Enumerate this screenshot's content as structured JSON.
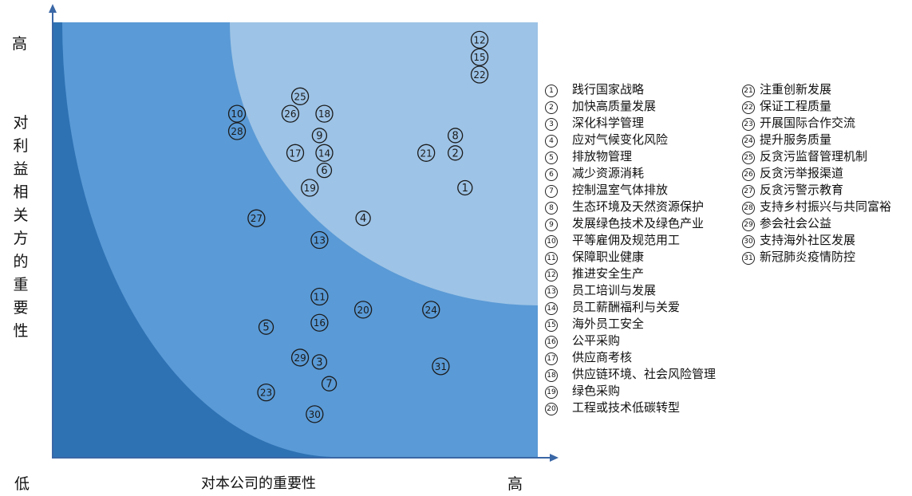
{
  "chart_data": {
    "type": "scatter",
    "title": "",
    "xlabel": "对本公司的重要性",
    "ylabel": "对利益相关方的重要性",
    "x_low_label": "低",
    "x_high_label": "高",
    "y_high_label": "高",
    "colors": {
      "outer": "#2e72b4",
      "middle": "#5a9ad6",
      "inner": "#9dc3e6",
      "axis": "#3a67a6"
    },
    "points": [
      {
        "id": "1",
        "x": 0.85,
        "y": 0.62
      },
      {
        "id": "2",
        "x": 0.83,
        "y": 0.7
      },
      {
        "id": "3",
        "x": 0.55,
        "y": 0.22
      },
      {
        "id": "4",
        "x": 0.64,
        "y": 0.55
      },
      {
        "id": "5",
        "x": 0.44,
        "y": 0.3
      },
      {
        "id": "6",
        "x": 0.56,
        "y": 0.66
      },
      {
        "id": "7",
        "x": 0.57,
        "y": 0.17
      },
      {
        "id": "8",
        "x": 0.83,
        "y": 0.74
      },
      {
        "id": "9",
        "x": 0.55,
        "y": 0.74
      },
      {
        "id": "10",
        "x": 0.38,
        "y": 0.79
      },
      {
        "id": "11",
        "x": 0.55,
        "y": 0.37
      },
      {
        "id": "12",
        "x": 0.88,
        "y": 0.96
      },
      {
        "id": "13",
        "x": 0.55,
        "y": 0.5
      },
      {
        "id": "14",
        "x": 0.56,
        "y": 0.7
      },
      {
        "id": "15",
        "x": 0.88,
        "y": 0.92
      },
      {
        "id": "16",
        "x": 0.55,
        "y": 0.31
      },
      {
        "id": "17",
        "x": 0.5,
        "y": 0.7
      },
      {
        "id": "18",
        "x": 0.56,
        "y": 0.79
      },
      {
        "id": "19",
        "x": 0.53,
        "y": 0.62
      },
      {
        "id": "20",
        "x": 0.64,
        "y": 0.34
      },
      {
        "id": "21",
        "x": 0.77,
        "y": 0.7
      },
      {
        "id": "22",
        "x": 0.88,
        "y": 0.88
      },
      {
        "id": "23",
        "x": 0.44,
        "y": 0.15
      },
      {
        "id": "24",
        "x": 0.78,
        "y": 0.34
      },
      {
        "id": "25",
        "x": 0.51,
        "y": 0.83
      },
      {
        "id": "26",
        "x": 0.49,
        "y": 0.79
      },
      {
        "id": "27",
        "x": 0.42,
        "y": 0.55
      },
      {
        "id": "28",
        "x": 0.38,
        "y": 0.75
      },
      {
        "id": "29",
        "x": 0.51,
        "y": 0.23
      },
      {
        "id": "30",
        "x": 0.54,
        "y": 0.1
      },
      {
        "id": "31",
        "x": 0.8,
        "y": 0.21
      }
    ],
    "legend": [
      {
        "num": "1",
        "label": "践行国家战略"
      },
      {
        "num": "2",
        "label": "加快高质量发展"
      },
      {
        "num": "3",
        "label": "深化科学管理"
      },
      {
        "num": "4",
        "label": "应对气候变化风险"
      },
      {
        "num": "5",
        "label": "排放物管理"
      },
      {
        "num": "6",
        "label": "减少资源消耗"
      },
      {
        "num": "7",
        "label": "控制温室气体排放"
      },
      {
        "num": "8",
        "label": "生态环境及天然资源保护"
      },
      {
        "num": "9",
        "label": "发展绿色技术及绿色产业"
      },
      {
        "num": "10",
        "label": "平等雇佣及规范用工"
      },
      {
        "num": "11",
        "label": "保障职业健康"
      },
      {
        "num": "12",
        "label": "推进安全生产"
      },
      {
        "num": "13",
        "label": "员工培训与发展"
      },
      {
        "num": "14",
        "label": "员工薪酬福利与关爱"
      },
      {
        "num": "15",
        "label": "海外员工安全"
      },
      {
        "num": "16",
        "label": "公平采购"
      },
      {
        "num": "17",
        "label": "供应商考核"
      },
      {
        "num": "18",
        "label": "供应链环境、社会风险管理"
      },
      {
        "num": "19",
        "label": "绿色采购"
      },
      {
        "num": "20",
        "label": "工程或技术低碳转型"
      },
      {
        "num": "21",
        "label": "注重创新发展"
      },
      {
        "num": "22",
        "label": "保证工程质量"
      },
      {
        "num": "23",
        "label": "开展国际合作交流"
      },
      {
        "num": "24",
        "label": "提升服务质量"
      },
      {
        "num": "25",
        "label": "反贪污监督管理机制"
      },
      {
        "num": "26",
        "label": "反贪污举报渠道"
      },
      {
        "num": "27",
        "label": "反贪污警示教育"
      },
      {
        "num": "28",
        "label": "支持乡村振兴与共同富裕"
      },
      {
        "num": "29",
        "label": "参会社会公益"
      },
      {
        "num": "30",
        "label": "支持海外社区发展"
      },
      {
        "num": "31",
        "label": "新冠肺炎疫情防控"
      }
    ]
  }
}
